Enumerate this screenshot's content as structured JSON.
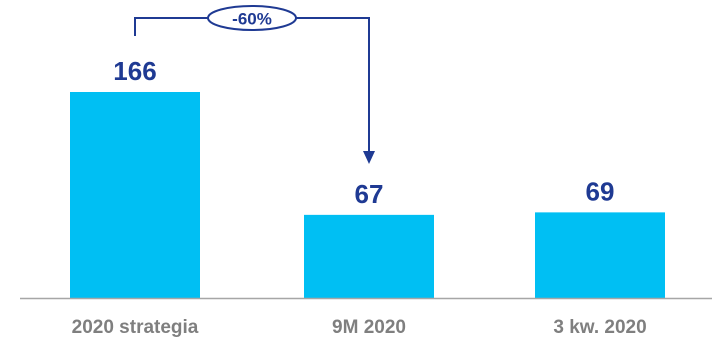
{
  "chart_data": {
    "type": "bar",
    "categories": [
      "2020 strategia",
      "9M 2020",
      "3 kw. 2020"
    ],
    "values": [
      166,
      67,
      69
    ],
    "value_labels": [
      "166",
      "67",
      "69"
    ],
    "ylim": [
      0,
      166
    ],
    "grid": false,
    "legend": "none",
    "annotation": {
      "text": "-60%",
      "from_category": "2020 strategia",
      "to_category": "9M 2020"
    }
  },
  "colors": {
    "bar": "#00bff3",
    "label": "#1f3a93",
    "tick": "#7f7f7f",
    "axis": "#a6a6a6",
    "arrow": "#1f3a93"
  }
}
